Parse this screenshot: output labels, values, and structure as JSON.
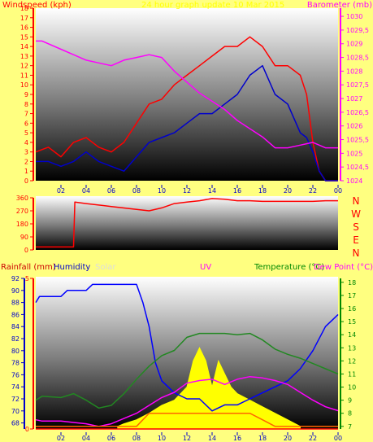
{
  "chart_data": [
    {
      "type": "line",
      "panel": "wind-pressure",
      "title": "24 hour graph update 10 Mar 2015",
      "ylabel_left": "Windspeed (kph)",
      "ylabel_right": "Barometer (mb)",
      "left_axis": {
        "ylim": [
          0,
          18
        ],
        "ticks": [
          0,
          1,
          2,
          3,
          4,
          5,
          6,
          7,
          8,
          9,
          10,
          11,
          12,
          13,
          14,
          15,
          16,
          17,
          18
        ]
      },
      "right_axis": {
        "ylim": [
          1024,
          1030.3
        ],
        "ticks": [
          "1024",
          "1024,5",
          "1025",
          "1025,5",
          "1026",
          "1026,5",
          "1027",
          "1027,5",
          "1028",
          "1028,5",
          "1029",
          "1029,5",
          "1030"
        ]
      },
      "x_ticks": [
        "02",
        "04",
        "06",
        "08",
        "10",
        "12",
        "14",
        "16",
        "18",
        "20",
        "22",
        "00"
      ],
      "xlim": [
        0,
        24
      ],
      "series": [
        {
          "color": "#ff0000",
          "axis": "left",
          "x": [
            0,
            1,
            2,
            3,
            4,
            5,
            6,
            7,
            8,
            9,
            10,
            11,
            12,
            13,
            14,
            15,
            16,
            17,
            18,
            19,
            20,
            21,
            21.5,
            22,
            22.5,
            23,
            24
          ],
          "y": [
            3,
            3.5,
            2.5,
            4,
            4.5,
            3.5,
            3,
            4,
            6,
            8,
            8.5,
            10,
            11,
            12,
            13,
            14,
            14,
            15,
            14,
            12,
            12,
            11,
            9,
            4,
            1,
            0,
            0
          ]
        },
        {
          "color": "#0000cc",
          "axis": "left",
          "x": [
            0,
            1,
            2,
            3,
            4,
            5,
            6,
            7,
            8,
            9,
            10,
            11,
            12,
            13,
            14,
            15,
            16,
            17,
            18,
            19,
            20,
            21,
            21.5,
            22,
            22.5,
            23,
            24
          ],
          "y": [
            2,
            2,
            1.5,
            2,
            3,
            2,
            1.5,
            1,
            2.5,
            4,
            4.5,
            5,
            6,
            7,
            7,
            8,
            9,
            11,
            12,
            9,
            8,
            5,
            4.5,
            3,
            1,
            0,
            0
          ]
        },
        {
          "color": "#ff00ff",
          "axis": "right",
          "x": [
            0,
            0.5,
            2,
            3,
            4,
            5,
            6,
            7,
            8,
            9,
            10,
            11,
            12,
            13,
            14,
            15,
            16,
            17,
            18,
            19,
            20,
            21,
            22,
            23,
            24
          ],
          "y": [
            1029.1,
            1029.1,
            1028.8,
            1028.6,
            1028.4,
            1028.3,
            1028.2,
            1028.4,
            1028.5,
            1028.6,
            1028.5,
            1028.0,
            1027.6,
            1027.2,
            1026.9,
            1026.6,
            1026.2,
            1025.9,
            1025.6,
            1025.2,
            1025.2,
            1025.3,
            1025.4,
            1025.2,
            1025.2
          ]
        }
      ]
    },
    {
      "type": "line",
      "panel": "wind-direction",
      "left_axis": {
        "ylim": [
          0,
          360
        ],
        "ticks": [
          "0",
          "90",
          "180",
          "270",
          "360"
        ]
      },
      "right_labels": [
        "N",
        "W",
        "S",
        "E",
        "N"
      ],
      "xlim": [
        0,
        24
      ],
      "series": [
        {
          "color": "#ff0000",
          "x": [
            0,
            2,
            3,
            3.1,
            4,
            6,
            8,
            9,
            10,
            11,
            12,
            13,
            14,
            15,
            16,
            17,
            18,
            19,
            20,
            21,
            22,
            23,
            24
          ],
          "y": [
            20,
            20,
            20,
            330,
            320,
            300,
            280,
            270,
            290,
            320,
            330,
            340,
            355,
            350,
            340,
            340,
            335,
            335,
            335,
            335,
            335,
            340,
            340
          ]
        }
      ]
    },
    {
      "type": "line",
      "panel": "rain-hum-solar-uv-temp",
      "ylabel_rain": "Rainfall (mm)",
      "ylabel_humidity": "Humidity",
      "ylabel_solar": "Solar",
      "ylabel_uv": "UV",
      "ylabel_temp": "Temperature (°C)",
      "ylabel_dew": "Dew Point (°C)",
      "rain_axis": {
        "ylim": [
          0,
          5
        ],
        "ticks": [
          "0",
          "5"
        ]
      },
      "humidity_axis": {
        "ylim": [
          67,
          92
        ],
        "ticks": [
          "68",
          "70",
          "72",
          "74",
          "76",
          "78",
          "80",
          "82",
          "84",
          "86",
          "88",
          "90",
          "92"
        ]
      },
      "temp_axis": {
        "ylim": [
          6.8,
          18.3
        ],
        "ticks": [
          "7",
          "8",
          "9",
          "10",
          "11",
          "12",
          "13",
          "14",
          "15",
          "16",
          "17",
          "18"
        ]
      },
      "x_ticks": [
        "02",
        "04",
        "06",
        "08",
        "10",
        "12",
        "14",
        "16",
        "18",
        "20",
        "22",
        "00"
      ],
      "xlim": [
        0,
        24
      ],
      "series": [
        {
          "name": "Humidity",
          "color": "#0000ff",
          "axis": "humidity",
          "x": [
            0,
            0.3,
            2,
            2.5,
            4,
            4.5,
            6,
            7,
            8,
            8.5,
            9,
            9.5,
            10,
            11,
            12,
            13,
            14,
            15,
            16,
            17,
            18,
            19,
            20,
            21,
            22,
            23,
            24
          ],
          "y": [
            88,
            89,
            89,
            90,
            90,
            91,
            91,
            91,
            91,
            88,
            84,
            78,
            75,
            73,
            72,
            72,
            70,
            71,
            71,
            72,
            73,
            74,
            75,
            77,
            80,
            84,
            86
          ]
        },
        {
          "name": "Temperature",
          "color": "#228822",
          "axis": "temp",
          "x": [
            0,
            0.5,
            2,
            3,
            4,
            5,
            6,
            7,
            8,
            9,
            10,
            11,
            12,
            13,
            14,
            15,
            16,
            17,
            18,
            19,
            20,
            21,
            22,
            23,
            24
          ],
          "y": [
            9,
            9.3,
            9.2,
            9.5,
            9.0,
            8.4,
            8.6,
            9.5,
            10.6,
            11.6,
            12.4,
            12.8,
            13.8,
            14.1,
            14.1,
            14.1,
            14.0,
            14.1,
            13.6,
            12.9,
            12.5,
            12.2,
            11.8,
            11.4,
            11.0
          ]
        },
        {
          "name": "Dew Point",
          "color": "#ff00ff",
          "axis": "temp",
          "x": [
            0,
            0.5,
            2,
            3,
            4,
            5,
            6,
            7,
            8,
            9,
            10,
            11,
            12,
            13,
            14,
            15,
            16,
            17,
            18,
            19,
            20,
            21,
            22,
            23,
            24
          ],
          "y": [
            7.5,
            7.4,
            7.4,
            7.3,
            7.2,
            7.0,
            7.2,
            7.6,
            8.0,
            8.6,
            9.2,
            9.6,
            10.3,
            10.5,
            10.6,
            10.2,
            10.6,
            10.8,
            10.7,
            10.5,
            10.2,
            9.6,
            9.0,
            8.5,
            8.2
          ]
        },
        {
          "name": "Solar",
          "color": "#ffff00",
          "axis": "temp",
          "x": [
            6.5,
            7,
            8,
            9,
            10,
            11,
            12,
            12.5,
            13,
            13.5,
            14,
            14.5,
            15,
            15.5,
            16,
            17,
            18,
            19,
            20,
            21
          ],
          "y": [
            7,
            7.2,
            7.5,
            8,
            8.6,
            9,
            10,
            12,
            13,
            12,
            10,
            12,
            11,
            10,
            9.5,
            9,
            8.5,
            8,
            7.5,
            7
          ]
        },
        {
          "name": "UV",
          "color": "#ff6600",
          "axis": "temp",
          "x": [
            0,
            8,
            8.5,
            9,
            12,
            13,
            16,
            17,
            18,
            19,
            20,
            24
          ],
          "y": [
            7,
            7,
            7.5,
            8,
            8,
            8,
            8,
            8,
            7.5,
            7,
            7,
            7
          ]
        },
        {
          "name": "Rainfall",
          "color": "#ff0000",
          "axis": "rain",
          "x": [
            0,
            24
          ],
          "y": [
            0,
            0
          ]
        }
      ]
    }
  ]
}
